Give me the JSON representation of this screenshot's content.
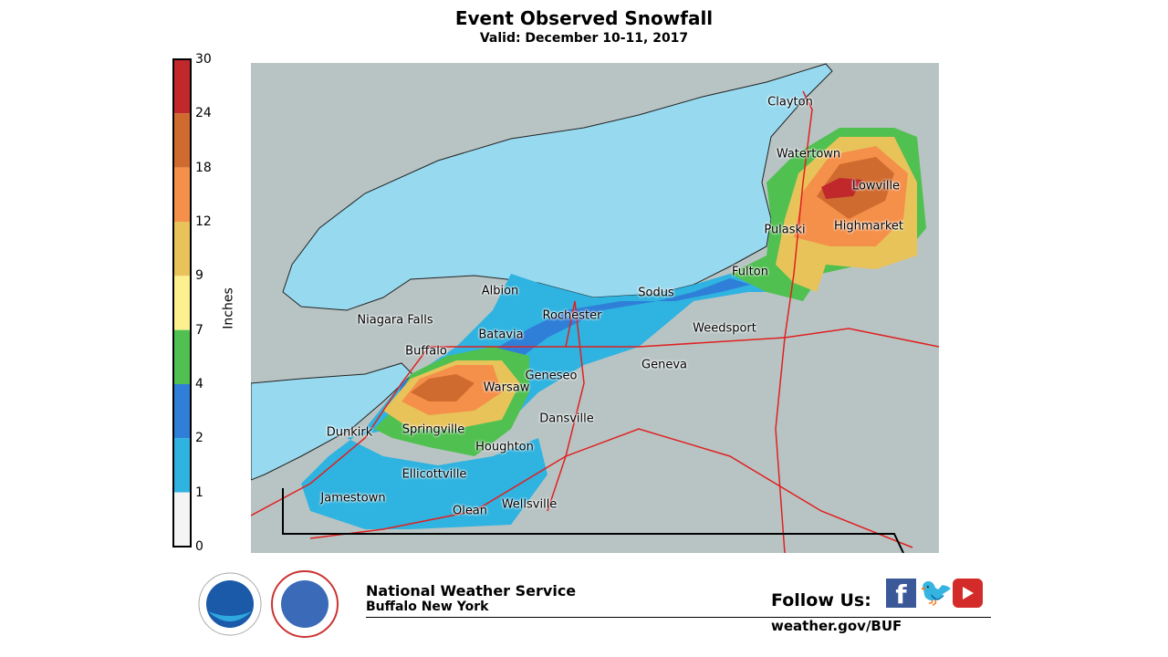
{
  "header": {
    "title": "Event Observed Snowfall",
    "subtitle": "Valid: December 10-11, 2017"
  },
  "legend": {
    "unit": "Inches",
    "ticks": [
      "30",
      "24",
      "18",
      "12",
      "9",
      "7",
      "4",
      "2",
      "1",
      "0"
    ],
    "colors": [
      "#c0282c",
      "#d06b30",
      "#f5904a",
      "#e8c35a",
      "#fdf08e",
      "#50c050",
      "#2f7fd8",
      "#2fb3e0",
      "#f4f4f4"
    ]
  },
  "map": {
    "lake_color": "#97daf0",
    "land_color": "#b8c4c4",
    "road_color": "#e02020",
    "cities": [
      "Clayton",
      "Watertown",
      "Lowville",
      "Pulaski",
      "Highmarket",
      "Fulton",
      "Sodus",
      "Albion",
      "Rochester",
      "Niagara Falls",
      "Weedsport",
      "Batavia",
      "Buffalo",
      "Geneva",
      "Geneseo",
      "Warsaw",
      "Dansville",
      "Dunkirk",
      "Springville",
      "Houghton",
      "Ellicottville",
      "Jamestown",
      "Wellsville",
      "Olean"
    ]
  },
  "footer": {
    "org": "National Weather Service",
    "office": "Buffalo New York",
    "follow": "Follow Us:",
    "website": "weather.gov/BUF",
    "logos": [
      "NOAA",
      "NATIONAL WEATHER SERVICE"
    ],
    "social_icons": [
      "facebook-icon",
      "twitter-icon",
      "youtube-icon"
    ]
  }
}
